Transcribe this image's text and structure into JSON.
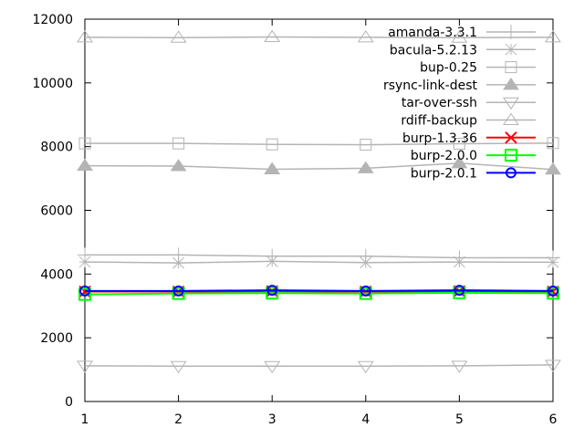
{
  "chart_data": {
    "type": "line",
    "title": "",
    "xlabel": "",
    "ylabel": "",
    "x": [
      1,
      2,
      3,
      4,
      5,
      6
    ],
    "xlim": [
      1,
      6
    ],
    "ylim": [
      0,
      12000
    ],
    "xticks": [
      "1",
      "2",
      "3",
      "4",
      "5",
      "6"
    ],
    "yticks": [
      "0",
      "2000",
      "4000",
      "6000",
      "8000",
      "10000",
      "12000"
    ],
    "grid": false,
    "legend_position": "top-right",
    "series": [
      {
        "name": "amanda-3.3.1",
        "color": "#b4b4b4",
        "marker": "plus",
        "values": [
          4600,
          4600,
          4560,
          4560,
          4510,
          4510
        ]
      },
      {
        "name": "bacula-5.2.13",
        "color": "#b4b4b4",
        "marker": "star",
        "values": [
          4380,
          4350,
          4400,
          4360,
          4380,
          4370
        ]
      },
      {
        "name": "bup-0.25",
        "color": "#b4b4b4",
        "marker": "square",
        "values": [
          8100,
          8100,
          8070,
          8060,
          8090,
          8110
        ]
      },
      {
        "name": "rsync-link-dest",
        "color": "#b4b4b4",
        "marker": "triangle-filled",
        "values": [
          7400,
          7390,
          7290,
          7320,
          7480,
          7280
        ]
      },
      {
        "name": "tar-over-ssh",
        "color": "#b4b4b4",
        "marker": "triangle-down",
        "values": [
          1120,
          1110,
          1110,
          1110,
          1120,
          1150
        ]
      },
      {
        "name": "rdiff-backup",
        "color": "#b4b4b4",
        "marker": "triangle",
        "values": [
          11430,
          11420,
          11440,
          11430,
          11420,
          11430
        ]
      },
      {
        "name": "burp-1.3.36",
        "color": "#ff0000",
        "marker": "cross",
        "values": [
          3450,
          3450,
          3460,
          3450,
          3460,
          3450
        ]
      },
      {
        "name": "burp-2.0.0",
        "color": "#00ff00",
        "marker": "square",
        "values": [
          3360,
          3390,
          3400,
          3390,
          3410,
          3400
        ]
      },
      {
        "name": "burp-2.0.1",
        "color": "#0000ff",
        "marker": "circle",
        "values": [
          3470,
          3470,
          3490,
          3470,
          3490,
          3470
        ]
      }
    ]
  }
}
